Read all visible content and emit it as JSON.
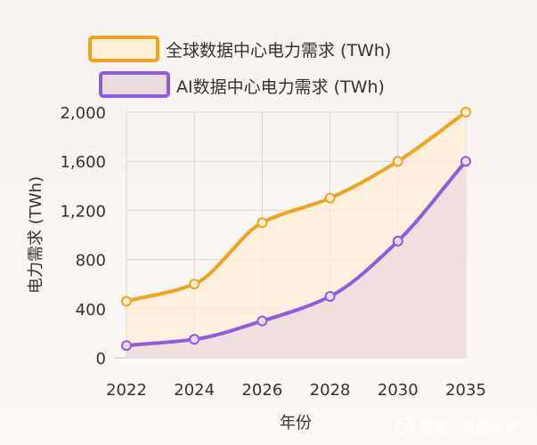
{
  "chart_data": {
    "type": "line",
    "x": [
      "2022",
      "2024",
      "2026",
      "2028",
      "2030",
      "2035"
    ],
    "series": [
      {
        "name": "全球数据中心电力需求 (TWh)",
        "values": [
          460,
          600,
          1100,
          1300,
          1600,
          2000
        ],
        "color": "#f0a31e",
        "fill": "#fdeed6"
      },
      {
        "name": "AI数据中心电力需求 (TWh)",
        "values": [
          100,
          150,
          300,
          500,
          950,
          1600
        ],
        "color": "#8f5ce0",
        "fill": "#eadbdf"
      }
    ],
    "yticks": [
      "0",
      "400",
      "800",
      "1,200",
      "1,600",
      "2,000"
    ],
    "ylim": [
      0,
      2000
    ],
    "xlabel": "年份",
    "ylabel": "电力需求 (TWh)",
    "grid": true,
    "legend": "top"
  },
  "watermark": {
    "text": "雪球：舟随江流"
  }
}
